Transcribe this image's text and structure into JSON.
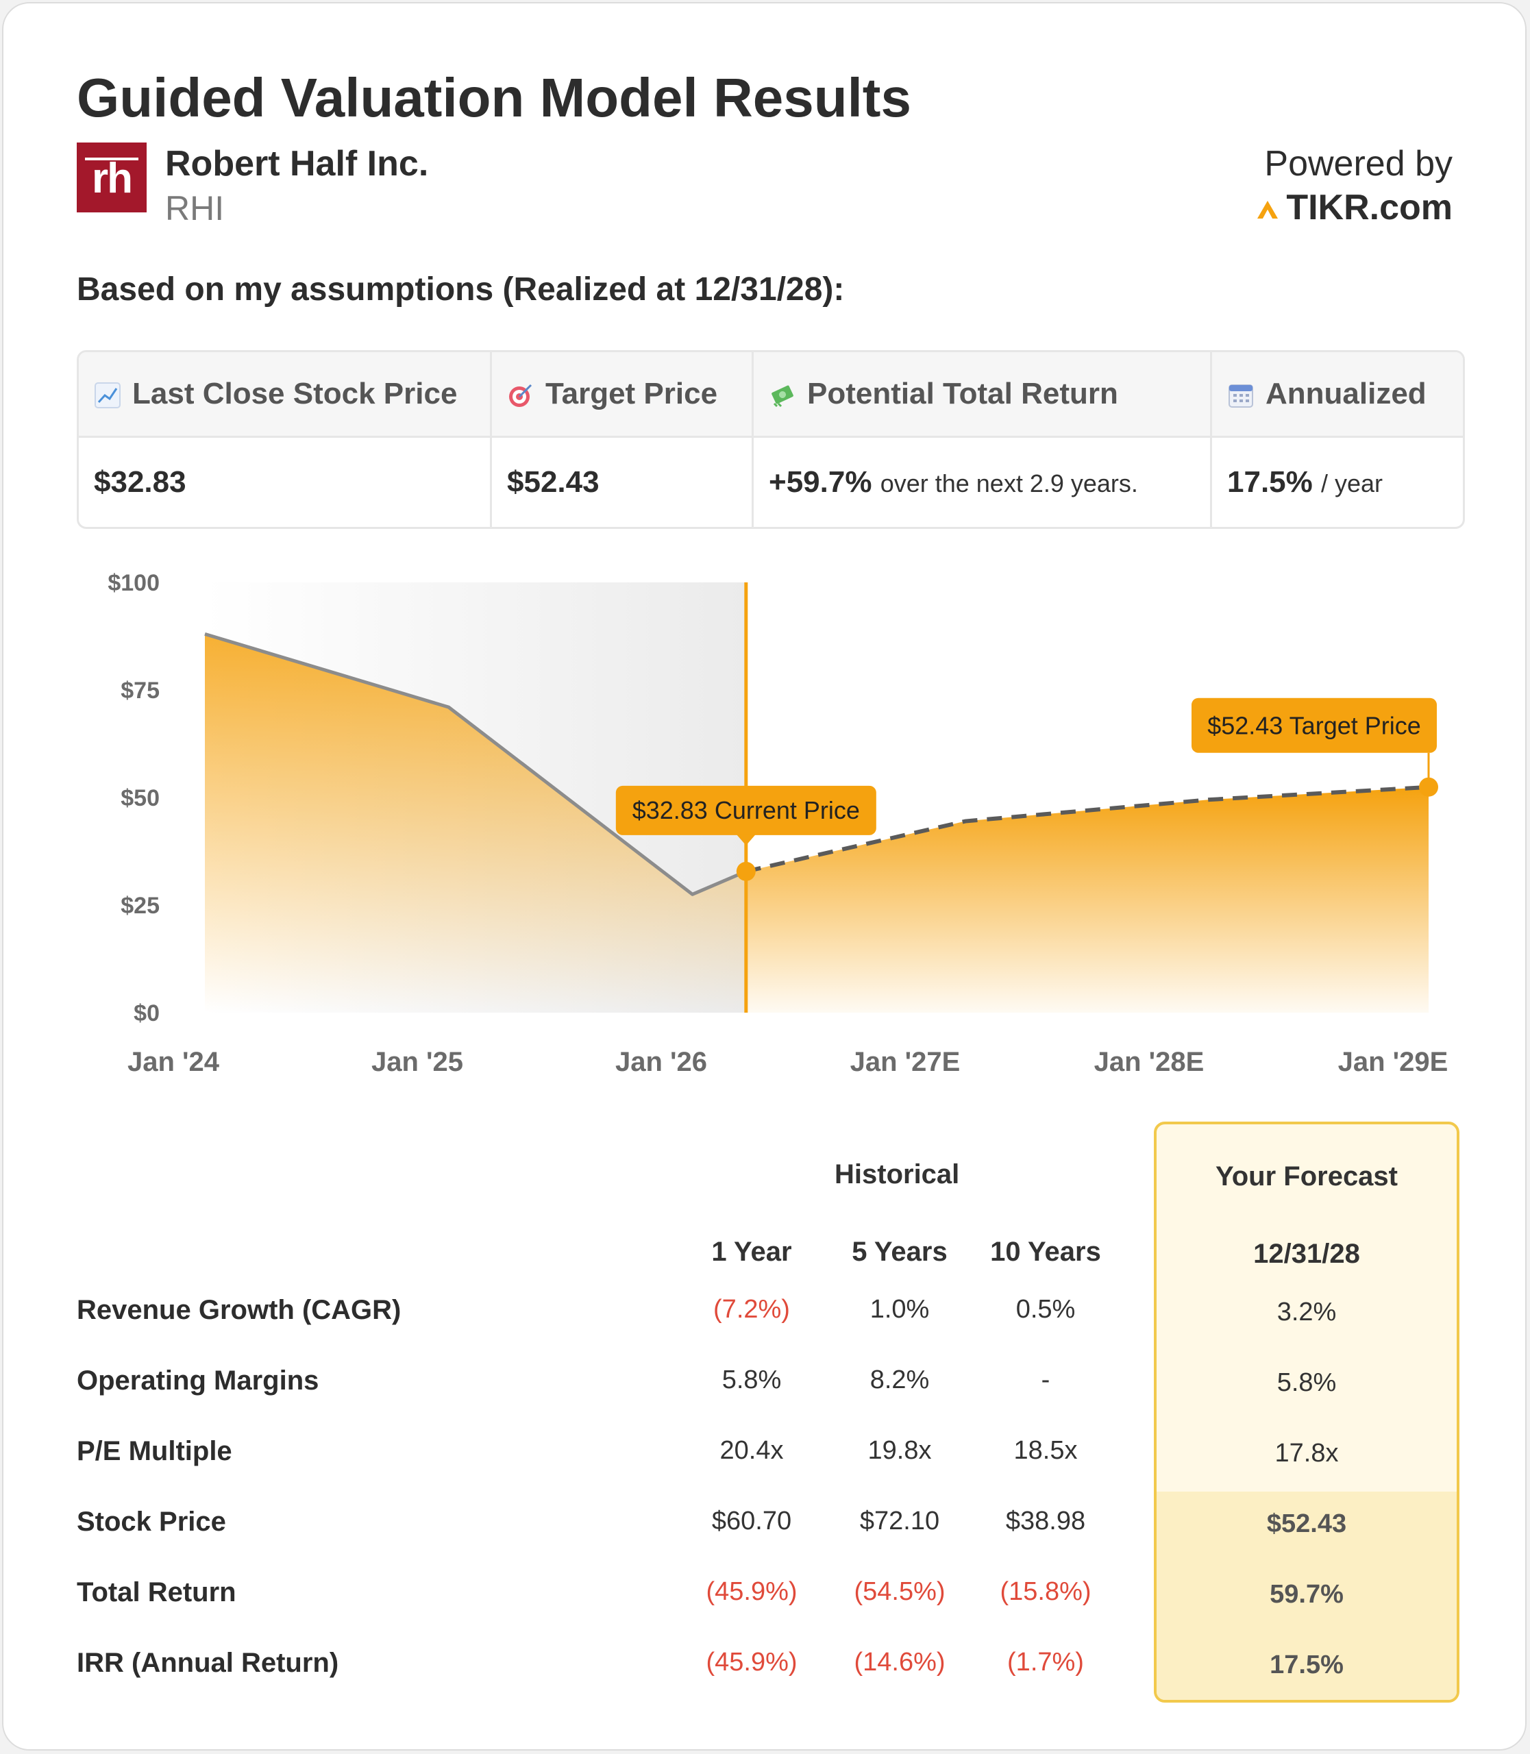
{
  "header": {
    "title": "Guided Valuation Model Results",
    "company": "Robert Half Inc.",
    "ticker": "RHI",
    "logo_text": "rh",
    "powered_by": "Powered by",
    "brand": "TIKR.com"
  },
  "subtitle": "Based on my assumptions (Realized at 12/31/28):",
  "metrics": [
    {
      "icon": "chart-increasing-icon",
      "label": "Last Close Stock Price",
      "value": "$32.83",
      "suffix": ""
    },
    {
      "icon": "target-icon",
      "label": "Target Price",
      "value": "$52.43",
      "suffix": ""
    },
    {
      "icon": "money-icon",
      "label": "Potential Total Return",
      "value": "+59.7%",
      "suffix": "over the next 2.9 years."
    },
    {
      "icon": "calendar-icon",
      "label": "Annualized",
      "value": "17.5%",
      "suffix": "/ year"
    }
  ],
  "chart_data": {
    "type": "area",
    "y_ticks": [
      "$0",
      "$25",
      "$50",
      "$75",
      "$100"
    ],
    "ylim": [
      0,
      100
    ],
    "x_ticks": [
      "Jan '24",
      "Jan '25",
      "Jan '26",
      "Jan '27E",
      "Jan '28E",
      "Jan '29E"
    ],
    "series": [
      {
        "name": "Historical",
        "style": "solid",
        "x": [
          2024.13,
          2025.13,
          2026.13
        ],
        "values": [
          88,
          71,
          27.5
        ]
      },
      {
        "name": "Forecast",
        "style": "dashed",
        "x": [
          2026.35,
          2027.25,
          2028.25,
          2029.15
        ],
        "values": [
          32.83,
          44.5,
          49.5,
          52.43
        ]
      }
    ],
    "current_marker": {
      "x": 2026.35,
      "value": 32.83,
      "label": "$32.83 Current Price"
    },
    "target_marker": {
      "x": 2029.15,
      "value": 52.43,
      "label": "$52.43 Target Price"
    },
    "colors": {
      "accent": "#f5a20f",
      "line": "#8c8c8c",
      "shade": "#efefef"
    }
  },
  "table": {
    "historical_header": "Historical",
    "forecast_header": "Your Forecast",
    "columns": [
      "1 Year",
      "5 Years",
      "10 Years"
    ],
    "forecast_column": "12/31/28",
    "rows": [
      {
        "label": "Revenue Growth (CAGR)",
        "values": [
          "(7.2%)",
          "1.0%",
          "0.5%"
        ],
        "forecast": "3.2%"
      },
      {
        "label": "Operating Margins",
        "values": [
          "5.8%",
          "8.2%",
          "-"
        ],
        "forecast": "5.8%"
      },
      {
        "label": "P/E Multiple",
        "values": [
          "20.4x",
          "19.8x",
          "18.5x"
        ],
        "forecast": "17.8x"
      },
      {
        "label": "Stock Price",
        "values": [
          "$60.70",
          "$72.10",
          "$38.98"
        ],
        "forecast": "$52.43"
      },
      {
        "label": "Total Return",
        "values": [
          "(45.9%)",
          "(54.5%)",
          "(15.8%)"
        ],
        "forecast": "59.7%"
      },
      {
        "label": "IRR (Annual Return)",
        "values": [
          "(45.9%)",
          "(14.6%)",
          "(1.7%)"
        ],
        "forecast": "17.5%"
      }
    ]
  }
}
